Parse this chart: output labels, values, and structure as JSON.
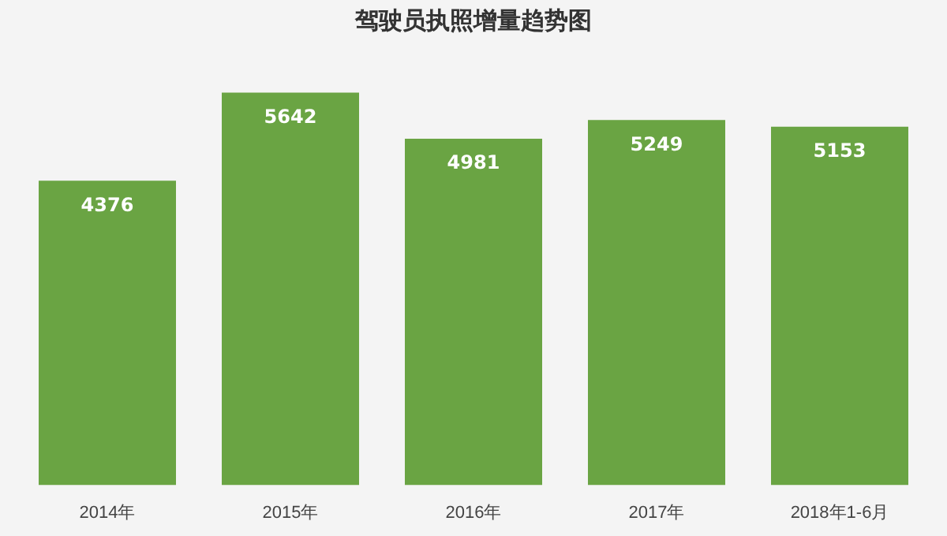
{
  "chart_data": {
    "type": "bar",
    "title": "驾驶员执照增量趋势图",
    "categories": [
      "2014年",
      "2015年",
      "2016年",
      "2017年",
      "2018年1-6月"
    ],
    "values": [
      4376,
      5642,
      4981,
      5249,
      5153
    ],
    "color": "#6aa443",
    "data_labels": true,
    "grid": false,
    "legend": false
  }
}
